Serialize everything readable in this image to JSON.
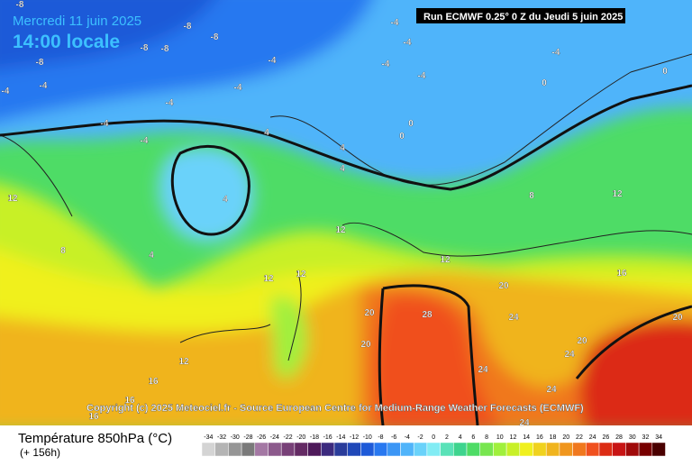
{
  "header": {
    "date": "Mercredi 11 juin 2025",
    "time": "14:00 locale",
    "run": "Run ECMWF 0.25° 0 Z du Jeudi 5 juin 2025"
  },
  "copyright": "Copyright (c) 2025 Meteociel.fr - Source European Centre for Medium-Range Weather Forecasts (ECMWF)",
  "legend": {
    "title": "Température 850hPa (°C)",
    "lead": "(+ 156h)",
    "values": [
      -34,
      -32,
      -30,
      -28,
      -26,
      -24,
      -22,
      -20,
      -18,
      -16,
      -14,
      -12,
      -10,
      -8,
      -6,
      -4,
      -2,
      0,
      2,
      4,
      6,
      8,
      10,
      12,
      14,
      16,
      18,
      20,
      22,
      24,
      26,
      28,
      30,
      32,
      34
    ],
    "colors": [
      "#d4d4d4",
      "#b4b4b4",
      "#969696",
      "#7a7a7a",
      "#a478a4",
      "#8c5a8c",
      "#784078",
      "#642a64",
      "#4e1a5a",
      "#3c2a7e",
      "#2a3c9a",
      "#2048b8",
      "#1e5ad8",
      "#2878f0",
      "#3c96f5",
      "#50b4fa",
      "#6ad2fa",
      "#82ecf4",
      "#5ae2b8",
      "#3ed48e",
      "#4edc66",
      "#78e650",
      "#a0f03c",
      "#c8f028",
      "#f0f01e",
      "#f0d21e",
      "#f0b41e",
      "#f0961e",
      "#f0781e",
      "#f0501e",
      "#dc2c14",
      "#c81414",
      "#a00a0a",
      "#780000",
      "#4a0000"
    ]
  },
  "map_labels": [
    "-8",
    "-8",
    "-8",
    "-8",
    "-8",
    "-8",
    "-4",
    "-4",
    "-4",
    "-4",
    "-4",
    "-4",
    "-4",
    "-4",
    "-4",
    "-4",
    "-4",
    "-4",
    "0",
    "0",
    "0",
    "0",
    "4",
    "4",
    "4",
    "4",
    "4",
    "8",
    "8",
    "12",
    "12",
    "12",
    "12",
    "12",
    "12",
    "12",
    "16",
    "16",
    "16",
    "16",
    "20",
    "20",
    "20",
    "20",
    "20",
    "24",
    "24",
    "24",
    "24",
    "24",
    "28"
  ]
}
